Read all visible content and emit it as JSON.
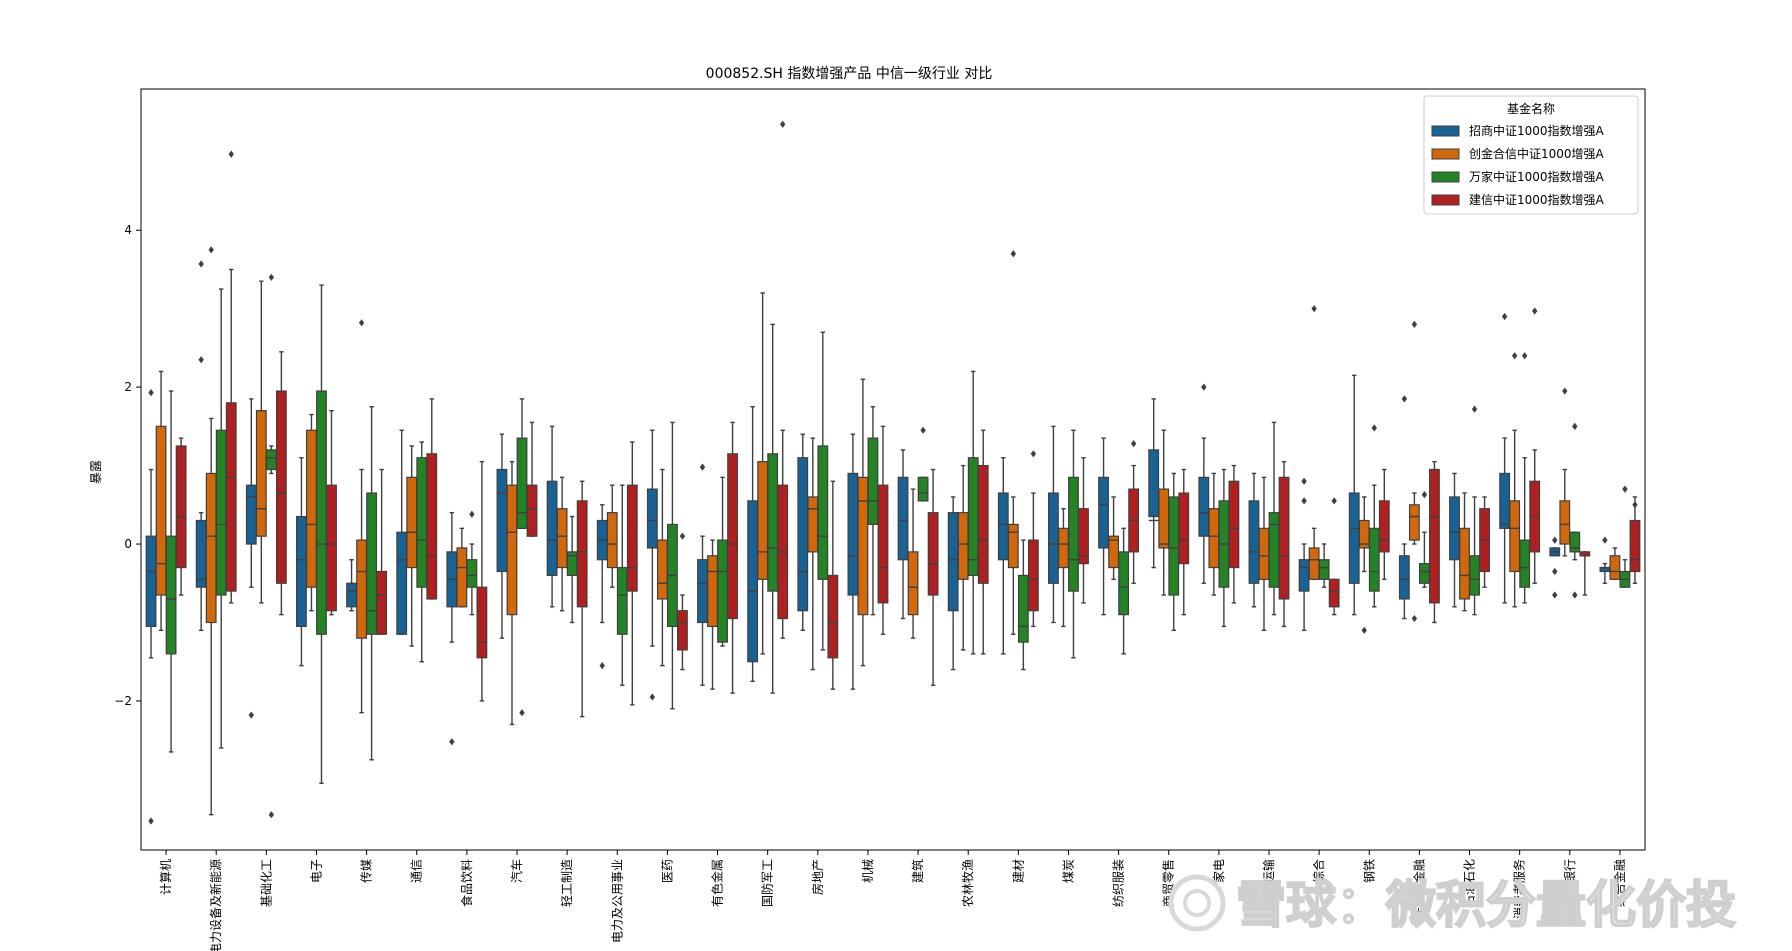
{
  "chart_data": {
    "type": "box",
    "title": "000852.SH 指数增强产品 中信一级行业 对比",
    "xlabel": "",
    "ylabel": "暴露",
    "ylim": [
      -3.9,
      5.8
    ],
    "yticks": [
      -2,
      0,
      2,
      4
    ],
    "grid": false,
    "legend_title": "基金名称",
    "legend_position": "top-right",
    "categories": [
      "计算机",
      "电力设备及新能源",
      "基础化工",
      "电子",
      "传媒",
      "通信",
      "食品饮料",
      "汽车",
      "轻工制造",
      "电力及公用事业",
      "医药",
      "有色金属",
      "国防军工",
      "房地产",
      "机械",
      "建筑",
      "农林牧渔",
      "建材",
      "煤炭",
      "纺织服装",
      "商贸零售",
      "家电",
      "交通运输",
      "综合",
      "钢铁",
      "非银行金融",
      "石油石化",
      "消费者服务",
      "银行",
      "综合金融"
    ],
    "series": [
      {
        "name": "招商中证1000指数增强A",
        "color": "#1f77b4",
        "stats": [
          [
            -1.45,
            -1.05,
            -0.35,
            0.1,
            0.95,
            [
              -3.53,
              1.93
            ]
          ],
          [
            -1.1,
            -0.55,
            -0.45,
            0.3,
            0.4,
            [
              2.35,
              3.57
            ]
          ],
          [
            -0.55,
            0.0,
            0.6,
            0.75,
            1.85,
            [
              -2.18
            ]
          ],
          [
            -1.55,
            -1.05,
            -0.2,
            0.35,
            1.1,
            []
          ],
          [
            -0.85,
            -0.8,
            -0.6,
            -0.5,
            -0.2,
            []
          ],
          [
            -1.15,
            -1.15,
            -0.2,
            0.15,
            1.45,
            []
          ],
          [
            -1.25,
            -0.8,
            -0.45,
            -0.1,
            0.4,
            [
              -2.52
            ]
          ],
          [
            -1.2,
            -0.35,
            0.65,
            0.95,
            1.4,
            []
          ],
          [
            -0.8,
            -0.4,
            0.05,
            0.8,
            1.5,
            []
          ],
          [
            -1.0,
            -0.2,
            0.05,
            0.3,
            0.5,
            [
              -1.55
            ]
          ],
          [
            -1.3,
            -0.05,
            0.3,
            0.7,
            1.45,
            [
              -1.95
            ]
          ],
          [
            -1.8,
            -1.0,
            -0.5,
            -0.2,
            0.1,
            [
              0.98
            ]
          ],
          [
            -1.75,
            -1.5,
            -0.6,
            0.55,
            1.75,
            []
          ],
          [
            -1.1,
            -0.85,
            -0.35,
            1.1,
            1.4,
            []
          ],
          [
            -1.85,
            -0.65,
            -0.15,
            0.9,
            1.4,
            []
          ],
          [
            -0.95,
            -0.2,
            0.3,
            0.85,
            1.2,
            []
          ],
          [
            -1.6,
            -0.85,
            -0.2,
            0.4,
            0.6,
            []
          ],
          [
            -1.4,
            -0.2,
            0.25,
            0.65,
            1.1,
            []
          ],
          [
            -1.0,
            -0.5,
            0.0,
            0.65,
            1.5,
            []
          ],
          [
            -0.9,
            -0.05,
            0.5,
            0.85,
            1.35,
            []
          ],
          [
            -0.3,
            0.35,
            0.3,
            1.2,
            1.85,
            []
          ],
          [
            -0.5,
            0.1,
            0.4,
            0.85,
            1.35,
            [
              2.0
            ]
          ],
          [
            -0.8,
            -0.5,
            -0.1,
            0.55,
            0.9,
            []
          ],
          [
            -1.1,
            -0.6,
            -0.3,
            -0.2,
            0.0,
            [
              0.8,
              0.55
            ]
          ],
          [
            -0.9,
            -0.5,
            0.2,
            0.65,
            2.15,
            []
          ],
          [
            -0.95,
            -0.7,
            -0.45,
            -0.15,
            0.0,
            [
              1.85
            ]
          ],
          [
            -0.8,
            -0.2,
            0.15,
            0.6,
            0.9,
            []
          ],
          [
            -0.75,
            0.2,
            0.25,
            0.9,
            1.35,
            [
              2.9
            ]
          ],
          [
            -0.15,
            -0.15,
            -0.1,
            -0.05,
            -0.05,
            [
              0.05,
              -0.35,
              -0.65
            ]
          ],
          [
            -0.5,
            -0.35,
            -0.3,
            -0.3,
            -0.25,
            [
              0.05
            ]
          ]
        ]
      },
      {
        "name": "创金合信中证1000增强A",
        "color": "#ff7f0e",
        "stats": [
          [
            -1.1,
            -0.65,
            -0.25,
            1.5,
            2.2,
            []
          ],
          [
            -3.45,
            -1.0,
            0.1,
            0.9,
            1.6,
            [
              3.75
            ]
          ],
          [
            -0.75,
            0.1,
            0.45,
            1.7,
            3.35,
            []
          ],
          [
            -0.85,
            -0.55,
            0.25,
            1.45,
            1.65,
            []
          ],
          [
            -2.15,
            -1.2,
            -0.35,
            0.05,
            0.95,
            [
              2.82
            ]
          ],
          [
            -1.3,
            -0.3,
            0.15,
            0.85,
            1.25,
            []
          ],
          [
            -0.8,
            -0.8,
            -0.3,
            -0.05,
            0.2,
            []
          ],
          [
            -2.3,
            -0.9,
            0.15,
            0.75,
            1.05,
            []
          ],
          [
            -0.85,
            -0.3,
            0.1,
            0.45,
            0.85,
            []
          ],
          [
            -0.55,
            -0.3,
            0.0,
            0.4,
            0.75,
            []
          ],
          [
            -1.55,
            -0.7,
            -0.5,
            0.05,
            0.95,
            []
          ],
          [
            -1.85,
            -1.05,
            -0.35,
            -0.15,
            0.05,
            []
          ],
          [
            -1.4,
            -0.45,
            -0.1,
            1.05,
            3.2,
            []
          ],
          [
            -1.6,
            -0.1,
            0.45,
            0.6,
            1.35,
            []
          ],
          [
            -1.55,
            -0.9,
            0.55,
            0.85,
            2.1,
            []
          ],
          [
            -1.2,
            -0.9,
            -0.55,
            -0.1,
            0.7,
            []
          ],
          [
            -1.35,
            -0.45,
            0.0,
            0.4,
            1.0,
            []
          ],
          [
            -1.15,
            -0.3,
            0.15,
            0.25,
            0.6,
            [
              3.7
            ]
          ],
          [
            -1.05,
            -0.3,
            0.0,
            0.2,
            0.45,
            []
          ],
          [
            -0.45,
            -0.3,
            0.05,
            0.1,
            0.6,
            []
          ],
          [
            -0.65,
            -0.05,
            0.0,
            0.7,
            1.45,
            []
          ],
          [
            -0.65,
            -0.3,
            0.1,
            0.45,
            0.9,
            []
          ],
          [
            -1.1,
            -0.45,
            -0.15,
            0.2,
            0.85,
            []
          ],
          [
            -0.45,
            -0.45,
            -0.2,
            -0.05,
            0.2,
            [
              3.0
            ]
          ],
          [
            -0.35,
            -0.05,
            0.0,
            0.3,
            0.6,
            [
              -1.1
            ]
          ],
          [
            0.0,
            0.05,
            0.35,
            0.5,
            0.65,
            [
              -0.95,
              2.8
            ]
          ],
          [
            -0.85,
            -0.7,
            -0.4,
            0.2,
            0.65,
            []
          ],
          [
            -0.8,
            -0.35,
            0.2,
            0.55,
            1.45,
            [
              2.4
            ]
          ],
          [
            -0.15,
            0.0,
            0.25,
            0.55,
            0.95,
            [
              1.95
            ]
          ],
          [
            -0.45,
            -0.45,
            -0.35,
            -0.15,
            -0.05,
            []
          ]
        ]
      },
      {
        "name": "万家中证1000指数增强A",
        "color": "#2ca02c",
        "stats": [
          [
            -2.65,
            -1.4,
            -0.7,
            0.1,
            1.95,
            []
          ],
          [
            -2.6,
            -0.65,
            0.25,
            1.45,
            3.25,
            []
          ],
          [
            0.9,
            0.95,
            1.1,
            1.2,
            1.25,
            [
              3.4,
              -3.45
            ]
          ],
          [
            -3.05,
            -1.15,
            0.0,
            1.95,
            3.3,
            []
          ],
          [
            -2.75,
            -1.15,
            -0.85,
            0.65,
            1.75,
            []
          ],
          [
            -1.5,
            -0.55,
            0.05,
            1.1,
            1.3,
            []
          ],
          [
            -0.9,
            -0.55,
            -0.4,
            -0.2,
            0.0,
            [
              0.38
            ]
          ],
          [
            0.2,
            0.2,
            0.4,
            1.35,
            1.85,
            [
              -2.15
            ]
          ],
          [
            -1.0,
            -0.4,
            -0.15,
            -0.1,
            0.35,
            []
          ],
          [
            -1.8,
            -1.15,
            -0.65,
            -0.3,
            0.75,
            []
          ],
          [
            -2.1,
            -1.05,
            -0.4,
            0.25,
            1.55,
            []
          ],
          [
            -1.3,
            -1.25,
            -0.35,
            0.05,
            0.85,
            []
          ],
          [
            -1.9,
            -0.6,
            -0.05,
            1.15,
            2.8,
            []
          ],
          [
            -1.35,
            -0.45,
            0.1,
            1.25,
            2.7,
            []
          ],
          [
            -0.9,
            0.25,
            0.55,
            1.35,
            1.75,
            []
          ],
          [
            0.55,
            0.55,
            0.65,
            0.85,
            0.85,
            [
              1.45
            ]
          ],
          [
            -1.4,
            -0.4,
            -0.2,
            1.1,
            2.2,
            []
          ],
          [
            -1.6,
            -1.25,
            -1.05,
            -0.4,
            0.05,
            []
          ],
          [
            -1.45,
            -0.6,
            -0.2,
            0.85,
            1.45,
            []
          ],
          [
            -1.4,
            -0.9,
            -0.55,
            -0.1,
            0.2,
            []
          ],
          [
            -1.1,
            -0.65,
            -0.05,
            0.6,
            0.9,
            []
          ],
          [
            -1.05,
            -0.55,
            0.0,
            0.55,
            0.95,
            []
          ],
          [
            -0.9,
            -0.55,
            0.25,
            0.4,
            1.55,
            []
          ],
          [
            -0.55,
            -0.45,
            -0.3,
            -0.2,
            0.0,
            []
          ],
          [
            -0.8,
            -0.6,
            -0.35,
            0.2,
            0.75,
            [
              1.48
            ]
          ],
          [
            -0.55,
            -0.5,
            -0.35,
            -0.25,
            0.15,
            [
              0.63
            ]
          ],
          [
            -0.9,
            -0.65,
            -0.45,
            -0.15,
            0.6,
            [
              1.72
            ]
          ],
          [
            -0.75,
            -0.55,
            -0.3,
            0.05,
            1.1,
            [
              2.4
            ]
          ],
          [
            -0.2,
            -0.1,
            -0.05,
            0.15,
            0.15,
            [
              -0.65,
              1.5
            ]
          ],
          [
            -0.55,
            -0.55,
            -0.45,
            -0.35,
            -0.2,
            [
              0.7
            ]
          ]
        ]
      },
      {
        "name": "建信中证1000指数增强A",
        "color": "#d62728",
        "stats": [
          [
            -0.65,
            -0.3,
            0.35,
            1.25,
            1.35,
            []
          ],
          [
            -0.75,
            -0.6,
            0.85,
            1.8,
            3.5,
            [
              4.97
            ]
          ],
          [
            -0.9,
            -0.5,
            0.65,
            1.95,
            2.45,
            []
          ],
          [
            -0.9,
            -0.85,
            0.0,
            0.75,
            1.7,
            []
          ],
          [
            -1.15,
            -1.15,
            -0.65,
            -0.35,
            0.95,
            []
          ],
          [
            -0.7,
            -0.7,
            -0.15,
            1.15,
            1.85,
            []
          ],
          [
            -2.0,
            -1.45,
            -1.25,
            -0.55,
            1.05,
            []
          ],
          [
            0.1,
            0.1,
            0.45,
            0.75,
            1.55,
            []
          ],
          [
            -2.2,
            -0.8,
            -0.1,
            0.55,
            0.8,
            []
          ],
          [
            -2.05,
            -0.6,
            -0.3,
            0.75,
            1.3,
            []
          ],
          [
            -1.6,
            -1.35,
            -1.0,
            -0.85,
            -0.65,
            [
              0.1
            ]
          ],
          [
            -1.9,
            -0.95,
            0.0,
            1.15,
            1.55,
            []
          ],
          [
            -1.2,
            -0.95,
            -0.1,
            0.75,
            1.45,
            [
              5.35
            ]
          ],
          [
            -1.85,
            -1.45,
            -1.0,
            -0.4,
            0.8,
            []
          ],
          [
            -1.15,
            -0.75,
            -0.3,
            0.75,
            1.5,
            []
          ],
          [
            -1.8,
            -0.65,
            -0.25,
            0.4,
            0.95,
            []
          ],
          [
            -1.4,
            -0.5,
            0.05,
            1.0,
            1.45,
            []
          ],
          [
            -1.05,
            -0.85,
            -0.45,
            0.05,
            0.65,
            [
              1.15
            ]
          ],
          [
            -0.75,
            -0.25,
            -0.15,
            0.45,
            1.1,
            []
          ],
          [
            -0.5,
            -0.1,
            0.3,
            0.7,
            1.0,
            [
              1.28
            ]
          ],
          [
            -0.9,
            -0.25,
            0.05,
            0.65,
            0.95,
            []
          ],
          [
            -0.75,
            -0.3,
            0.2,
            0.8,
            1.0,
            []
          ],
          [
            -1.05,
            -0.7,
            -0.15,
            0.85,
            1.05,
            []
          ],
          [
            -0.9,
            -0.8,
            -0.6,
            -0.45,
            -0.45,
            [
              0.55
            ]
          ],
          [
            -0.45,
            -0.1,
            0.05,
            0.55,
            0.95,
            []
          ],
          [
            -1.0,
            -0.75,
            0.35,
            0.95,
            1.05,
            []
          ],
          [
            -0.55,
            -0.35,
            0.05,
            0.45,
            0.6,
            []
          ],
          [
            -0.5,
            -0.1,
            0.35,
            0.8,
            1.2,
            [
              2.97
            ]
          ],
          [
            -0.65,
            -0.15,
            -0.15,
            -0.1,
            -0.1,
            []
          ],
          [
            -0.5,
            -0.35,
            -0.2,
            0.3,
            0.6,
            [
              0.5
            ]
          ]
        ]
      }
    ]
  },
  "watermark": "雪球：微积分量化价投"
}
